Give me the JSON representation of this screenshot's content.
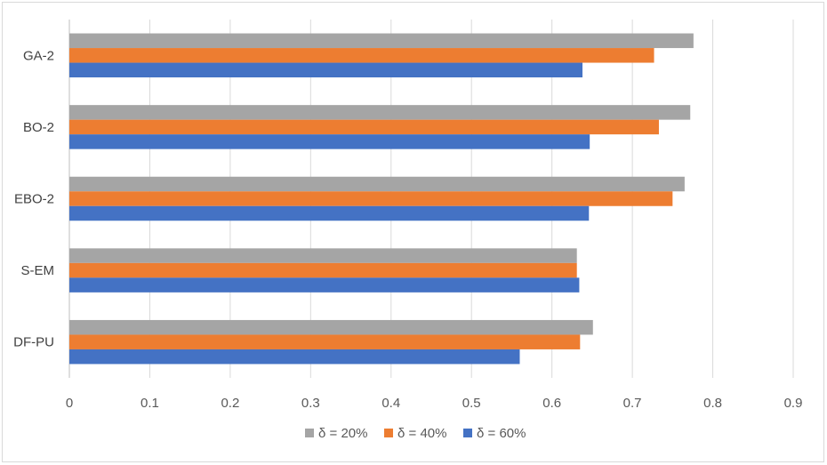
{
  "chart_data": {
    "type": "bar",
    "orientation": "horizontal",
    "categories": [
      "GA-2",
      "BO-2",
      "EBO-2",
      "S-EM",
      "DF-PU"
    ],
    "series": [
      {
        "name": "δ = 20%",
        "color": "#a5a5a5",
        "values": [
          0.776,
          0.772,
          0.765,
          0.631,
          0.651
        ]
      },
      {
        "name": "δ = 40%",
        "color": "#ed7d31",
        "values": [
          0.727,
          0.733,
          0.75,
          0.631,
          0.635
        ]
      },
      {
        "name": "δ = 60%",
        "color": "#4472c4",
        "values": [
          0.638,
          0.647,
          0.646,
          0.634,
          0.56
        ]
      }
    ],
    "xlim": [
      0,
      0.9
    ],
    "xticks": [
      "0",
      "0.1",
      "0.2",
      "0.3",
      "0.4",
      "0.5",
      "0.6",
      "0.7",
      "0.8",
      "0.9"
    ],
    "title": "",
    "xlabel": "",
    "ylabel": "",
    "grid": "vertical",
    "legend_position": "bottom",
    "legend_order": [
      "δ = 20%",
      "δ = 40%",
      "δ = 60%"
    ]
  }
}
